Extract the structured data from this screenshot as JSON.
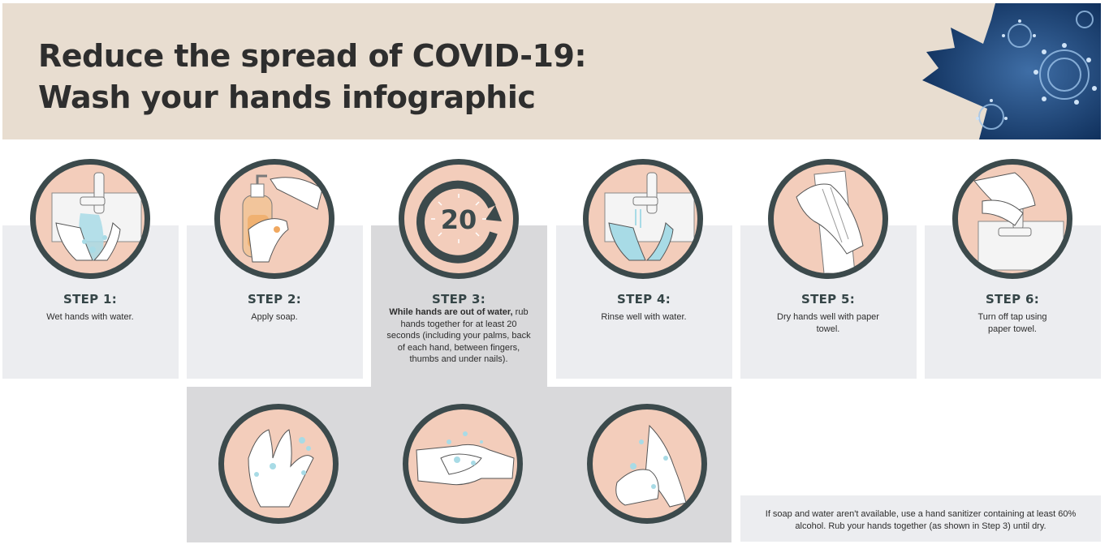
{
  "header": {
    "title_line1": "Reduce the spread of COVID-19:",
    "title_line2": "Wash your hands infographic"
  },
  "steps": [
    {
      "title": "STEP 1:",
      "text": "Wet hands with water.",
      "icon": "faucet-wet-hands-icon"
    },
    {
      "title": "STEP 2:",
      "text": "Apply soap.",
      "icon": "soap-dispenser-icon"
    },
    {
      "title": "STEP 3:",
      "text_bold": "While hands are out of water,",
      "text": "rub hands together for at least 20 seconds (including your palms, back of each hand, between fingers, thumbs and under nails).",
      "icon": "timer-icon",
      "timer_value": "20"
    },
    {
      "title": "STEP 4:",
      "text": "Rinse well with water.",
      "icon": "faucet-rinse-hands-icon"
    },
    {
      "title": "STEP 5:",
      "text": "Dry hands well with paper towel.",
      "icon": "paper-towel-icon"
    },
    {
      "title": "STEP 6:",
      "text": "Turn off tap using paper towel.",
      "icon": "turn-off-tap-icon"
    }
  ],
  "rub_illustrations": [
    "interlaced-fingers-icon",
    "back-of-hand-icon",
    "palm-rub-icon"
  ],
  "note": "If soap and water aren't available, use a hand sanitizer containing at least 60% alcohol. Rub your hands together (as shown in Step 3) until dry.",
  "colors": {
    "header_bg": "#e8ddd0",
    "circle_fill": "#f3cdbb",
    "circle_ring": "#3c4a4c",
    "water": "#a8dbe6",
    "card_bg": "#ecedf0",
    "card_dark": "#d9d9db"
  }
}
